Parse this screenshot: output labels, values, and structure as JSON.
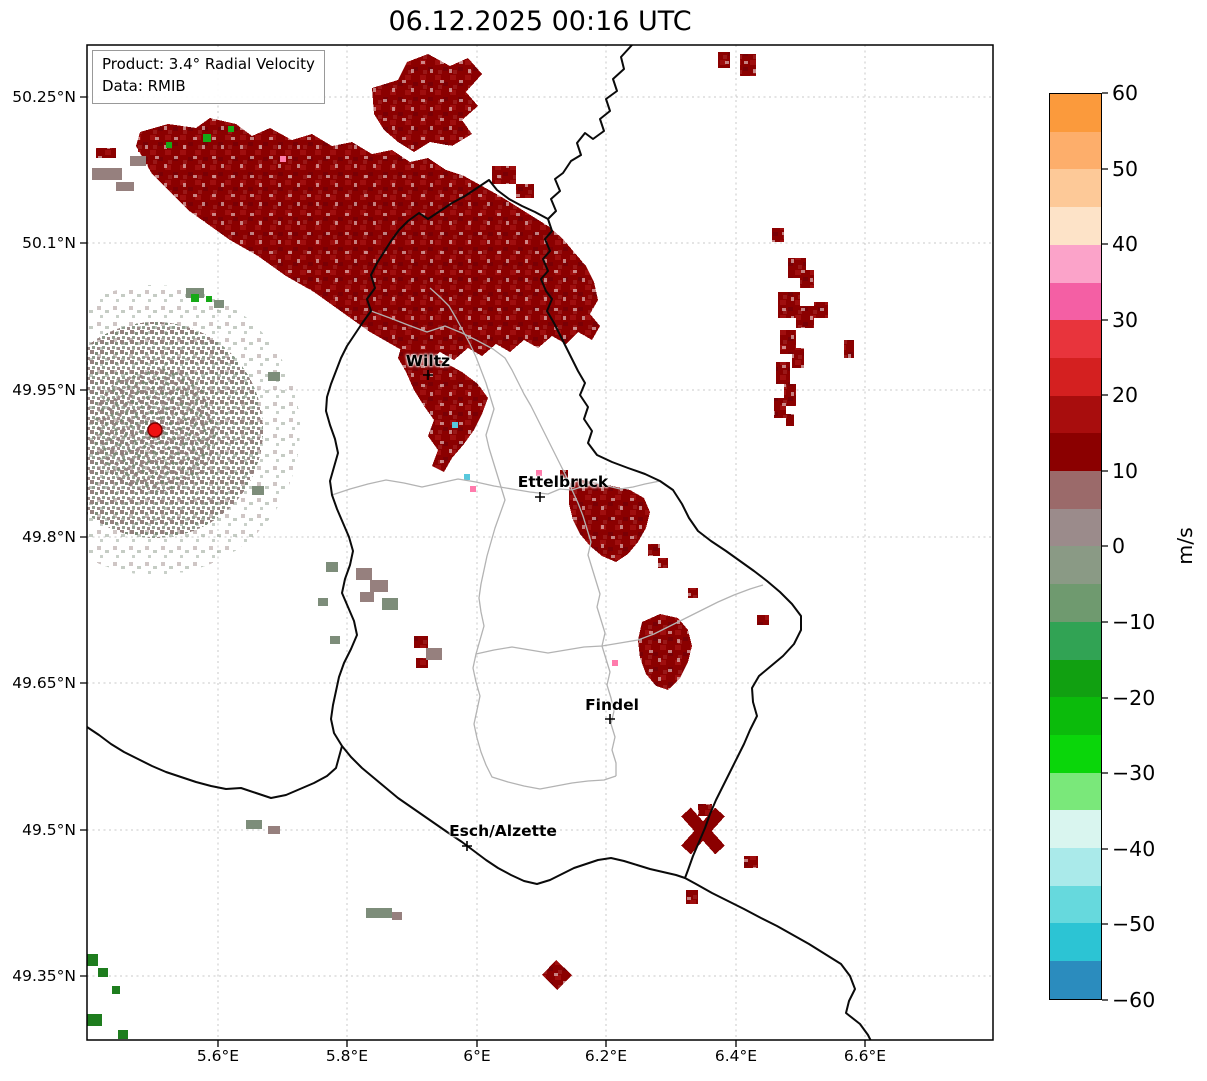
{
  "title": "06.12.2025 00:16 UTC",
  "info_box": {
    "line1": "Product: 3.4° Radial Velocity",
    "line2": "Data: RMIB"
  },
  "axes": {
    "lat_ticks": [
      "50.25°N",
      "50.1°N",
      "49.95°N",
      "49.8°N",
      "49.65°N",
      "49.5°N",
      "49.35°N"
    ],
    "lon_ticks": [
      "5.6°E",
      "5.8°E",
      "6°E",
      "6.2°E",
      "6.4°E",
      "6.6°E"
    ]
  },
  "map": {
    "cities": [
      {
        "name": "Wiltz"
      },
      {
        "name": "Ettelbruck"
      },
      {
        "name": "Findel"
      },
      {
        "name": "Esch/Alzette"
      }
    ],
    "radar_features": [
      {
        "area": "Large pixelated echo band along the northern Belgian–German border, extending south past Wiltz",
        "radial_velocity_mps": "10 to 20",
        "color": "#8b0000"
      },
      {
        "area": "Echo patch just east of Ettelbruck",
        "radial_velocity_mps": "10 to 20",
        "color": "#8b0000"
      },
      {
        "area": "Echo patch northeast of Findel",
        "radial_velocity_mps": "10 to 20",
        "color": "#8b0000"
      },
      {
        "area": "Scattered echo column near the eastern edge (~6.45°E, 49.95–50.1°N)",
        "radial_velocity_mps": "10 to 20",
        "color": "#8b0000"
      },
      {
        "area": "X-shaped echo on the southeastern border near 6.35°E 49.5°N",
        "radial_velocity_mps": "10 to 20",
        "color": "#8b0000"
      },
      {
        "area": "Speckled ground-clutter disc around the radar site (~5.5°E, 49.91°N)",
        "radial_velocity_mps": "-5 to 5",
        "color": "#94817f / #7e8e7b"
      },
      {
        "area": "Small green echoes in the far southwest corner",
        "radial_velocity_mps": "-10 to -20",
        "color": "#1e7d1e"
      }
    ]
  },
  "colorbar": {
    "label": "m/s",
    "ticks": [
      "60",
      "50",
      "40",
      "30",
      "20",
      "10",
      "0",
      "−10",
      "−20",
      "−30",
      "−40",
      "−50",
      "−60"
    ],
    "segments": [
      "#fb9a3c",
      "#fdae6b",
      "#fdc998",
      "#fde3c8",
      "#fba3c9",
      "#f45fa4",
      "#e8343c",
      "#d42020",
      "#a80d0d",
      "#8b0000",
      "#9b6a6a",
      "#9b8b8b",
      "#8a9a85",
      "#6f9a6f",
      "#31a354",
      "#11a011",
      "#0bbb0b",
      "#0ad60a",
      "#7ae87a",
      "#d9f5ef",
      "#aaeaea",
      "#66d9dd",
      "#2cc4d4",
      "#2b8cbe"
    ]
  },
  "palette": {
    "echo_dark_red": "#8b0000",
    "clutter_mauve": "#94817f",
    "clutter_green": "#7e8e7b",
    "country_border": "#000000",
    "district_border": "#b3b3b3",
    "gridline": "#c8c8c8",
    "radar_site_dot": "#ee1111"
  }
}
